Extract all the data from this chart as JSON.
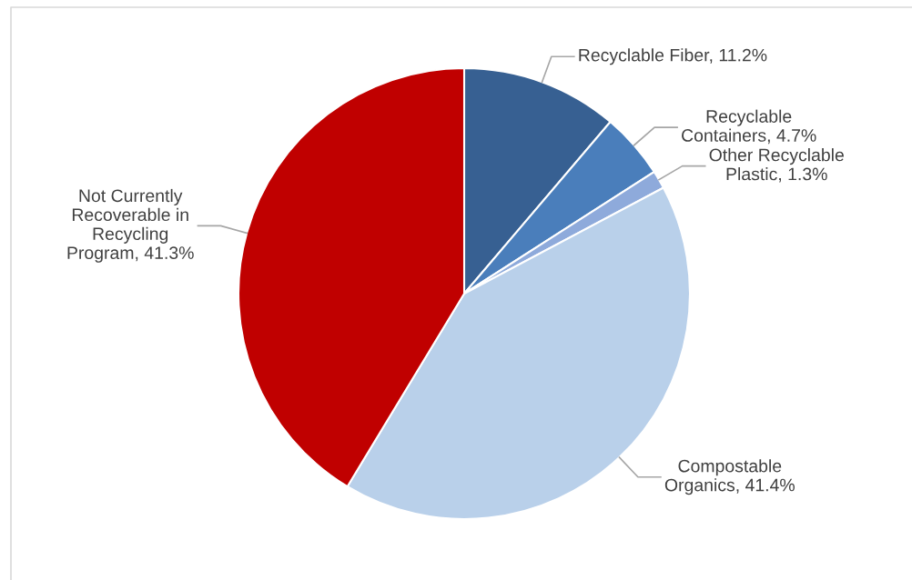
{
  "chart_data": {
    "type": "pie",
    "categories": [
      "Recyclable Fiber",
      "Recyclable\nContainers",
      "Other Recyclable\nPlastic",
      "Compostable\nOrganics",
      "Not Currently\nRecoverable in\nRecycling\nProgram"
    ],
    "values": [
      11.2,
      4.7,
      1.3,
      41.4,
      41.3
    ],
    "value_labels": [
      "11.2%",
      "4.7%",
      "1.3%",
      "41.4%",
      "41.3%"
    ],
    "colors": [
      "#376092",
      "#4a7ebb",
      "#8eaadb",
      "#b9d0ea",
      "#c00000"
    ]
  }
}
